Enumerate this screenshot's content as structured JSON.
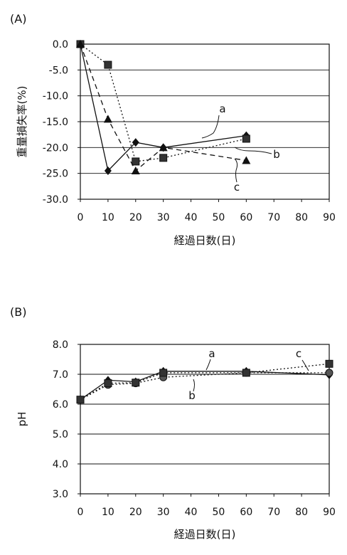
{
  "chart_data": [
    {
      "panel_label": "(A)",
      "type": "line",
      "xlabel": "経過日数(日)",
      "ylabel": "重量損失率(%)",
      "xlim": [
        0,
        90
      ],
      "ylim": [
        -30,
        0
      ],
      "x_ticks": [
        "0",
        "10",
        "20",
        "30",
        "40",
        "50",
        "60",
        "70",
        "80",
        "90"
      ],
      "y_ticks": [
        "0.0",
        "-5.0",
        "-10.0",
        "-15.0",
        "-20.0",
        "-25.0",
        "-30.0"
      ],
      "grid": "horizontal",
      "series": [
        {
          "name": "a",
          "marker": "diamond",
          "line": "solid",
          "x": [
            0,
            10,
            20,
            30,
            60
          ],
          "y": [
            0,
            -24.5,
            -19.0,
            -20.0,
            -17.7
          ]
        },
        {
          "name": "b",
          "marker": "square",
          "line": "dotted",
          "x": [
            0,
            10,
            20,
            30,
            60
          ],
          "y": [
            0,
            -4.0,
            -22.7,
            -22.0,
            -18.3
          ]
        },
        {
          "name": "c",
          "marker": "triangle",
          "line": "dashed",
          "x": [
            0,
            10,
            20,
            30,
            60
          ],
          "y": [
            0,
            -14.5,
            -24.5,
            -20.0,
            -22.5
          ]
        }
      ]
    },
    {
      "panel_label": "(B)",
      "type": "line",
      "xlabel": "経過日数(日)",
      "ylabel": "pH",
      "xlim": [
        0,
        90
      ],
      "ylim": [
        3,
        8
      ],
      "x_ticks": [
        "0",
        "10",
        "20",
        "30",
        "40",
        "50",
        "60",
        "70",
        "80",
        "90"
      ],
      "y_ticks": [
        "8.0",
        "7.0",
        "6.0",
        "5.0",
        "4.0",
        "3.0"
      ],
      "grid": "horizontal",
      "series": [
        {
          "name": "a",
          "marker": "diamond",
          "line": "solid",
          "x": [
            0,
            10,
            20,
            30,
            60,
            90
          ],
          "y": [
            6.15,
            6.8,
            6.75,
            7.1,
            7.1,
            6.98
          ]
        },
        {
          "name": "b",
          "marker": "circle",
          "line": "dotted",
          "x": [
            0,
            10,
            20,
            30,
            60,
            90
          ],
          "y": [
            6.15,
            6.65,
            6.7,
            6.9,
            7.05,
            7.05
          ]
        },
        {
          "name": "c",
          "marker": "square",
          "line": "dotted",
          "x": [
            0,
            10,
            20,
            30,
            60,
            90
          ],
          "y": [
            6.15,
            6.7,
            6.72,
            7.05,
            7.05,
            7.35
          ]
        }
      ]
    }
  ]
}
